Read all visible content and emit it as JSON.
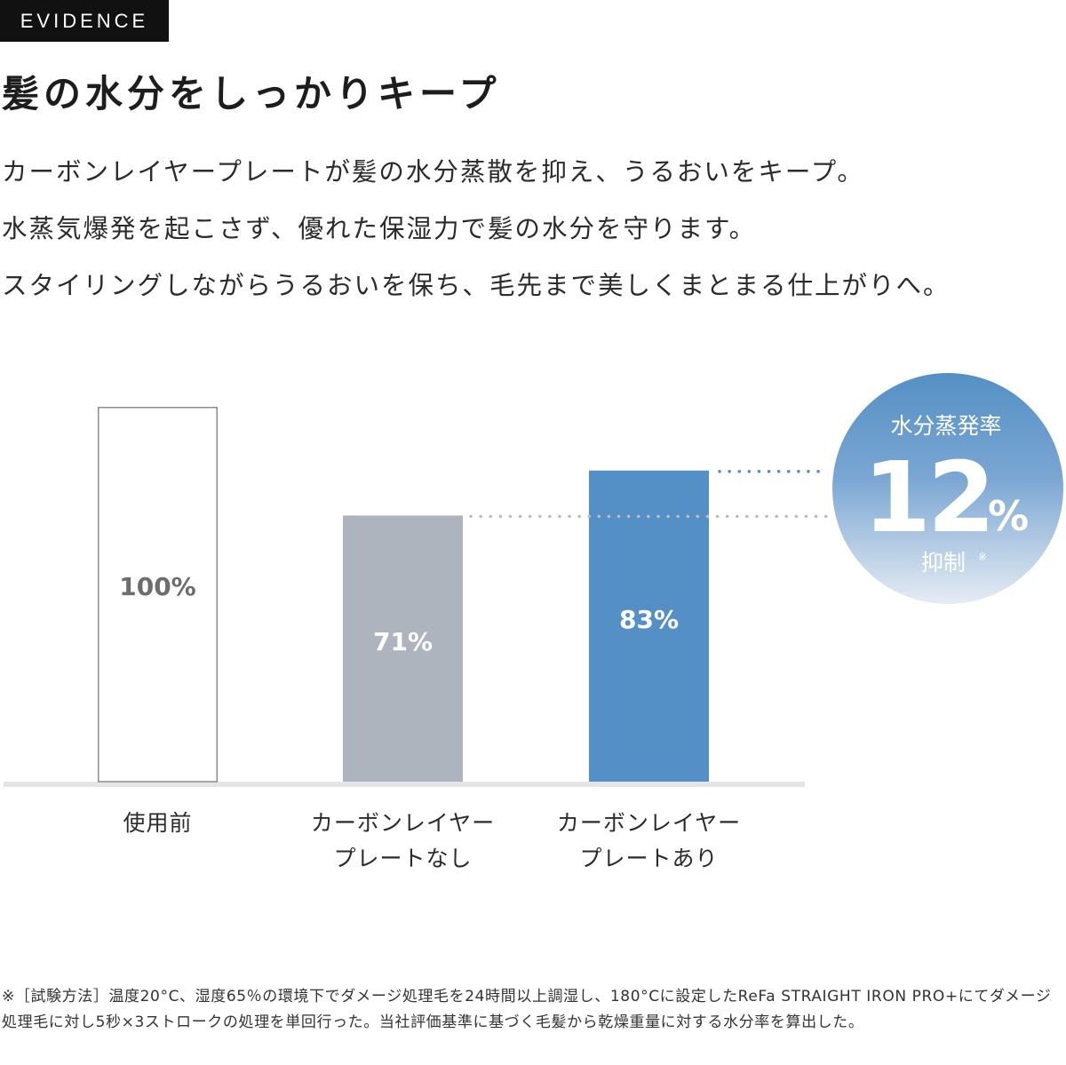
{
  "tag": "EVIDENCE",
  "headline": "髪の水分をしっかりキープ",
  "body_lines": [
    "カーボンレイヤープレートが髪の水分蒸散を抑え、うるおいをキープ。",
    "水蒸気爆発を起こさず、優れた保湿力で髪の水分を守ります。",
    "スタイリングしながらうるおいを保ち、毛先まで美しくまとまる仕上がりへ。"
  ],
  "chart_data": {
    "type": "bar",
    "title": "",
    "xlabel": "",
    "ylabel": "",
    "ylim": [
      0,
      100
    ],
    "grid": false,
    "categories": [
      [
        "使用前"
      ],
      [
        "カーボンレイヤー",
        "プレートなし"
      ],
      [
        "カーボンレイヤー",
        "プレートあり"
      ]
    ],
    "values": [
      100,
      71,
      83
    ],
    "data_labels": [
      "100%",
      "71%",
      "83%"
    ],
    "bar_colors": [
      "#ffffff",
      "#aeb4bd",
      "#5490c5"
    ],
    "bar_border": "#8c8c8c",
    "label_colors": [
      "#6d6d6d",
      "#ffffff",
      "#ffffff"
    ],
    "dotted_line_color": "#b9bec4",
    "accent_dotted_color": "#5490c5",
    "badge": {
      "line1": "水分蒸発率",
      "number": "12",
      "unit": "%",
      "line3": "抑制",
      "mark": "※",
      "gradient_top": "#5490c5",
      "gradient_bottom": "#e6ecf4"
    }
  },
  "footnote": "※［試験方法］温度20°C、湿度65％の環境下でダメージ処理毛を24時間以上調湿し、180°Cに設定したReFa STRAIGHT IRON PRO+にてダメージ処理毛に対し5秒×3ストロークの処理を単回行った。当社評価基準に基づく毛髪から乾燥重量に対する水分率を算出した。"
}
